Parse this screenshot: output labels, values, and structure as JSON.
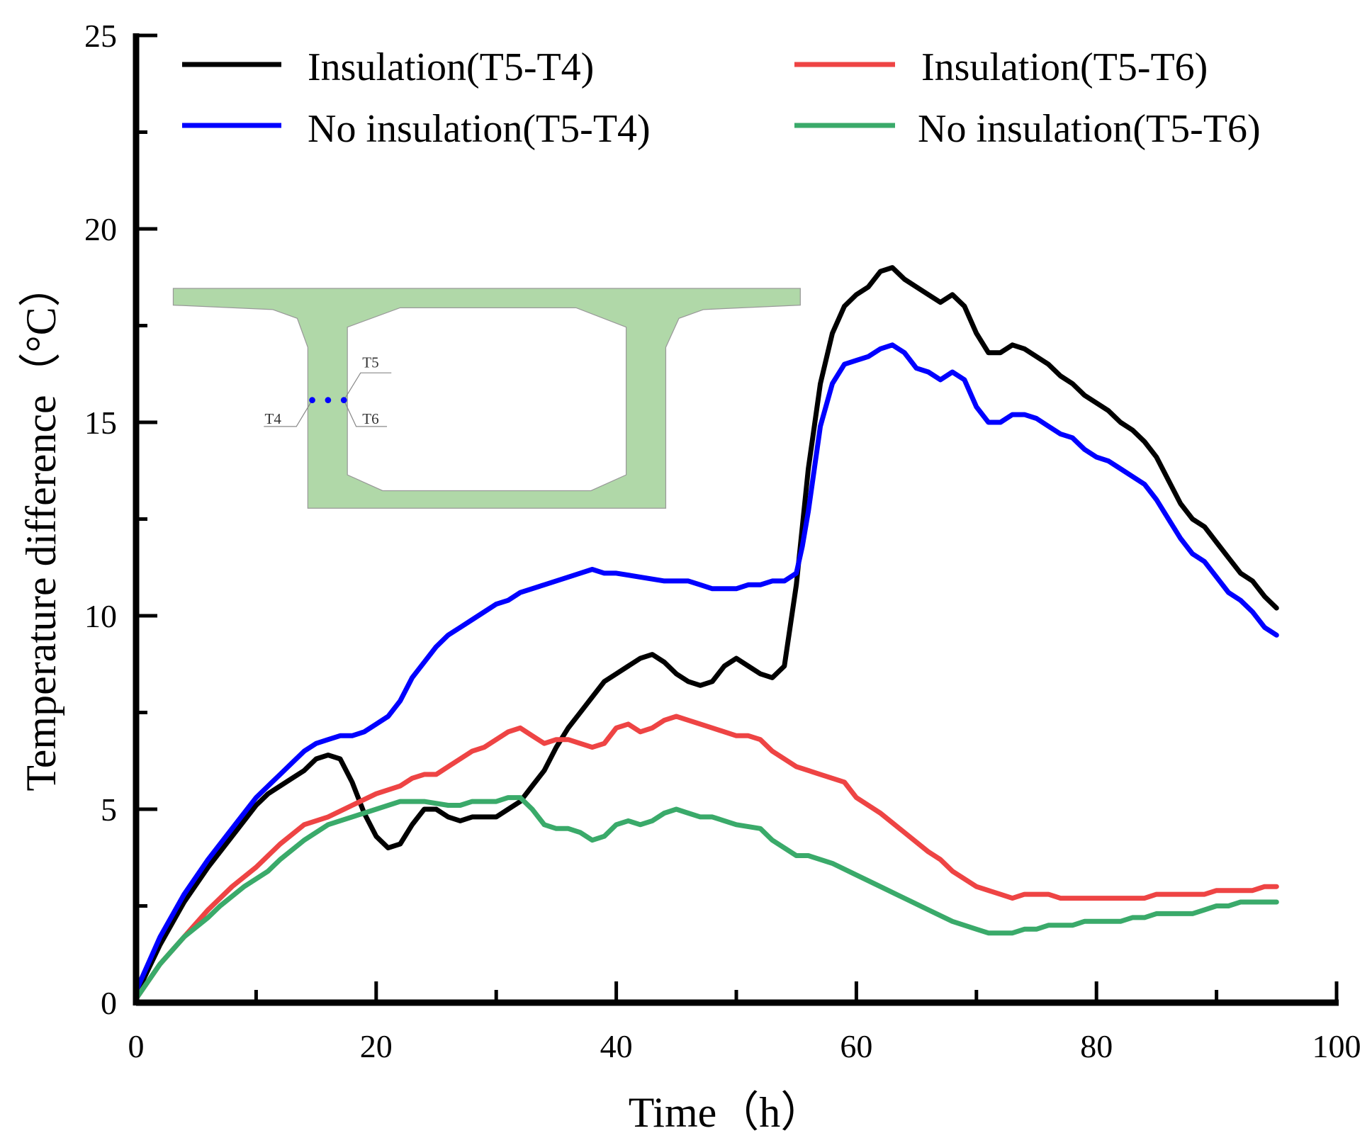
{
  "chart_data": {
    "type": "line",
    "xlabel": "Time（h）",
    "ylabel": "Temperature difference（°C）",
    "xlim": [
      0,
      100
    ],
    "ylim": [
      0,
      25
    ],
    "xticks": [
      "0",
      "20",
      "40",
      "60",
      "80",
      "100"
    ],
    "yticks": [
      "0",
      "5",
      "10",
      "15",
      "20",
      "25"
    ],
    "grid": false,
    "legend_position": "top",
    "series": [
      {
        "name": "Insulation(T5-T4)",
        "color": "#000000",
        "x": [
          0,
          2,
          4,
          6,
          8,
          10,
          11,
          13,
          14,
          15,
          16,
          17,
          18,
          19,
          20,
          21,
          22,
          23,
          24,
          25,
          26,
          27,
          28,
          30,
          31,
          32,
          33,
          34,
          35,
          36,
          37,
          38,
          39,
          40,
          41,
          42,
          43,
          44,
          45,
          46,
          47,
          48,
          49,
          50,
          51,
          52,
          53,
          54,
          55,
          56,
          57,
          58,
          59,
          60,
          61,
          62,
          63,
          64,
          65,
          66,
          67,
          68,
          69,
          70,
          71,
          72,
          73,
          74,
          75,
          76,
          77,
          78,
          79,
          80,
          81,
          82,
          83,
          84,
          85,
          86,
          87,
          88,
          89,
          90,
          91,
          92,
          93,
          94,
          95
        ],
        "y": [
          0.2,
          1.5,
          2.6,
          3.5,
          4.3,
          5.1,
          5.4,
          5.8,
          6.0,
          6.3,
          6.4,
          6.3,
          5.7,
          4.9,
          4.3,
          4.0,
          4.1,
          4.6,
          5.0,
          5.0,
          4.8,
          4.7,
          4.8,
          4.8,
          5.0,
          5.2,
          5.6,
          6.0,
          6.6,
          7.1,
          7.5,
          7.9,
          8.3,
          8.5,
          8.7,
          8.9,
          9.0,
          8.8,
          8.5,
          8.3,
          8.2,
          8.3,
          8.7,
          8.9,
          8.7,
          8.5,
          8.4,
          8.7,
          10.8,
          13.8,
          16.0,
          17.3,
          18.0,
          18.3,
          18.5,
          18.9,
          19.0,
          18.7,
          18.5,
          18.3,
          18.1,
          18.3,
          18.0,
          17.3,
          16.8,
          16.8,
          17.0,
          16.9,
          16.7,
          16.5,
          16.2,
          16.0,
          15.7,
          15.5,
          15.3,
          15.0,
          14.8,
          14.5,
          14.1,
          13.5,
          12.9,
          12.5,
          12.3,
          11.9,
          11.5,
          11.1,
          10.9,
          10.5,
          10.2
        ]
      },
      {
        "name": "Insulation(T5-T6)",
        "color": "#ee4444",
        "x": [
          0,
          2,
          4,
          6,
          8,
          10,
          12,
          14,
          16,
          18,
          20,
          22,
          23,
          24,
          25,
          26,
          28,
          29,
          30,
          31,
          32,
          33,
          34,
          35,
          36,
          37,
          38,
          39,
          40,
          41,
          42,
          43,
          44,
          45,
          46,
          48,
          50,
          51,
          52,
          53,
          55,
          57,
          59,
          60,
          62,
          64,
          66,
          67,
          68,
          70,
          72,
          73,
          74,
          76,
          77,
          80,
          84,
          85,
          88,
          89,
          90,
          93,
          94,
          95
        ],
        "y": [
          0.1,
          1.0,
          1.7,
          2.4,
          3.0,
          3.5,
          4.1,
          4.6,
          4.8,
          5.1,
          5.4,
          5.6,
          5.8,
          5.9,
          5.9,
          6.1,
          6.5,
          6.6,
          6.8,
          7.0,
          7.1,
          6.9,
          6.7,
          6.8,
          6.8,
          6.7,
          6.6,
          6.7,
          7.1,
          7.2,
          7.0,
          7.1,
          7.3,
          7.4,
          7.3,
          7.1,
          6.9,
          6.9,
          6.8,
          6.5,
          6.1,
          5.9,
          5.7,
          5.3,
          4.9,
          4.4,
          3.9,
          3.7,
          3.4,
          3.0,
          2.8,
          2.7,
          2.8,
          2.8,
          2.7,
          2.7,
          2.7,
          2.8,
          2.8,
          2.8,
          2.9,
          2.9,
          3.0,
          3.0
        ]
      },
      {
        "name": "No insulation(T5-T4)",
        "color": "#0000ff",
        "x": [
          0,
          2,
          4,
          6,
          8,
          10,
          11,
          12,
          13,
          14,
          15,
          16,
          17,
          18,
          19,
          20,
          21,
          22,
          23,
          24,
          25,
          26,
          27,
          28,
          29,
          30,
          31,
          32,
          34,
          36,
          37,
          38,
          39,
          40,
          42,
          44,
          46,
          47,
          48,
          50,
          51,
          52,
          53,
          54,
          55,
          55.5,
          56,
          56.5,
          57,
          58,
          59,
          60,
          61,
          62,
          63,
          64,
          65,
          66,
          67,
          68,
          69,
          70,
          71,
          72,
          73,
          74,
          75,
          76,
          77,
          78,
          79,
          80,
          81,
          82,
          83,
          84,
          85,
          86,
          87,
          88,
          89,
          90,
          91,
          92,
          93,
          94,
          95
        ],
        "y": [
          0.3,
          1.7,
          2.8,
          3.7,
          4.5,
          5.3,
          5.6,
          5.9,
          6.2,
          6.5,
          6.7,
          6.8,
          6.9,
          6.9,
          7.0,
          7.2,
          7.4,
          7.8,
          8.4,
          8.8,
          9.2,
          9.5,
          9.7,
          9.9,
          10.1,
          10.3,
          10.4,
          10.6,
          10.8,
          11.0,
          11.1,
          11.2,
          11.1,
          11.1,
          11.0,
          10.9,
          10.9,
          10.8,
          10.7,
          10.7,
          10.8,
          10.8,
          10.9,
          10.9,
          11.1,
          11.8,
          12.7,
          13.8,
          14.9,
          16.0,
          16.5,
          16.6,
          16.7,
          16.9,
          17.0,
          16.8,
          16.4,
          16.3,
          16.1,
          16.3,
          16.1,
          15.4,
          15.0,
          15.0,
          15.2,
          15.2,
          15.1,
          14.9,
          14.7,
          14.6,
          14.3,
          14.1,
          14.0,
          13.8,
          13.6,
          13.4,
          13.0,
          12.5,
          12.0,
          11.6,
          11.4,
          11.0,
          10.6,
          10.4,
          10.1,
          9.7,
          9.5
        ]
      },
      {
        "name": "No insulation(T5-T6)",
        "color": "#3aaa6a",
        "x": [
          0,
          2,
          4,
          6,
          7,
          9,
          11,
          12,
          14,
          16,
          18,
          20,
          22,
          24,
          26,
          27,
          28,
          30,
          31,
          32,
          33,
          34,
          35,
          36,
          37,
          38,
          39,
          40,
          41,
          42,
          43,
          44,
          45,
          46,
          47,
          48,
          50,
          52,
          53,
          55,
          56,
          58,
          60,
          62,
          64,
          66,
          68,
          70,
          71,
          73,
          74,
          75,
          76,
          78,
          79,
          82,
          83,
          84,
          85,
          88,
          89,
          90,
          91,
          92,
          95
        ],
        "y": [
          0.1,
          1.0,
          1.7,
          2.2,
          2.5,
          3.0,
          3.4,
          3.7,
          4.2,
          4.6,
          4.8,
          5.0,
          5.2,
          5.2,
          5.1,
          5.1,
          5.2,
          5.2,
          5.3,
          5.3,
          5.0,
          4.6,
          4.5,
          4.5,
          4.4,
          4.2,
          4.3,
          4.6,
          4.7,
          4.6,
          4.7,
          4.9,
          5.0,
          4.9,
          4.8,
          4.8,
          4.6,
          4.5,
          4.2,
          3.8,
          3.8,
          3.6,
          3.3,
          3.0,
          2.7,
          2.4,
          2.1,
          1.9,
          1.8,
          1.8,
          1.9,
          1.9,
          2.0,
          2.0,
          2.1,
          2.1,
          2.2,
          2.2,
          2.3,
          2.3,
          2.4,
          2.5,
          2.5,
          2.6,
          2.6
        ]
      }
    ],
    "inset": {
      "labels": {
        "t4": "T4",
        "t5": "T5",
        "t6": "T6"
      },
      "fill_color": "#b0d8a8",
      "sensor_color": "#0000ff"
    }
  }
}
